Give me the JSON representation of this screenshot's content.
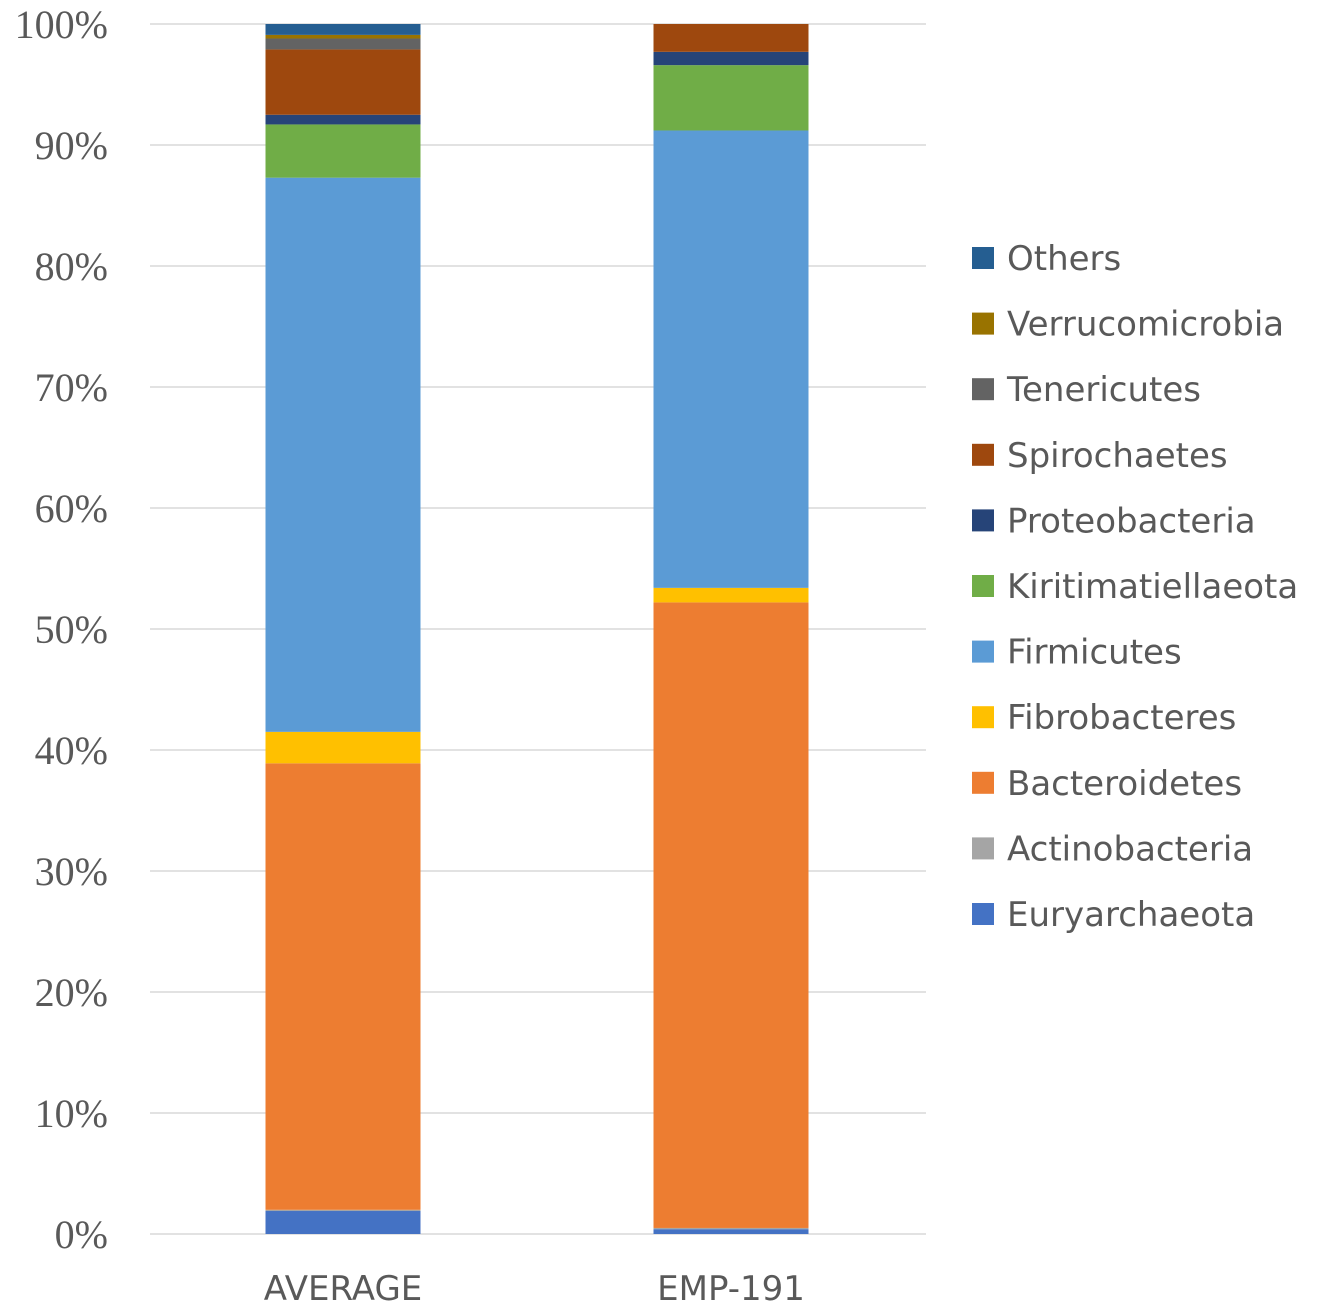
{
  "chart_data": {
    "type": "bar",
    "stacked": true,
    "normalized_percent": true,
    "categories": [
      "AVERAGE",
      "EMP-191"
    ],
    "ylim": [
      0,
      100
    ],
    "yticks": [
      "0%",
      "10%",
      "20%",
      "30%",
      "40%",
      "50%",
      "60%",
      "70%",
      "80%",
      "90%",
      "100%"
    ],
    "grid": true,
    "legend_position": "right",
    "series": [
      {
        "name": "Euryarchaeota",
        "color": "#4472C4",
        "values": [
          1.9,
          0.4
        ]
      },
      {
        "name": "Actinobacteria",
        "color": "#A5A5A5",
        "values": [
          0.1,
          0.1
        ]
      },
      {
        "name": "Bacteroidetes",
        "color": "#ED7D31",
        "values": [
          36.9,
          51.7
        ]
      },
      {
        "name": "Fibrobacteres",
        "color": "#FFC000",
        "values": [
          2.6,
          1.2
        ]
      },
      {
        "name": "Firmicutes",
        "color": "#5B9BD5",
        "values": [
          45.8,
          37.8
        ]
      },
      {
        "name": "Kiritimatiellaeota",
        "color": "#70AD47",
        "values": [
          4.4,
          5.4
        ]
      },
      {
        "name": "Proteobacteria",
        "color": "#264478",
        "values": [
          0.8,
          1.1
        ]
      },
      {
        "name": "Spirochaetes",
        "color": "#9E480E",
        "values": [
          5.4,
          2.3
        ]
      },
      {
        "name": "Tenericutes",
        "color": "#636363",
        "values": [
          0.9,
          0.0
        ]
      },
      {
        "name": "Verrucomicrobia",
        "color": "#997300",
        "values": [
          0.3,
          0.0
        ]
      },
      {
        "name": "Others",
        "color": "#255E91",
        "values": [
          0.9,
          0.0
        ]
      }
    ]
  }
}
